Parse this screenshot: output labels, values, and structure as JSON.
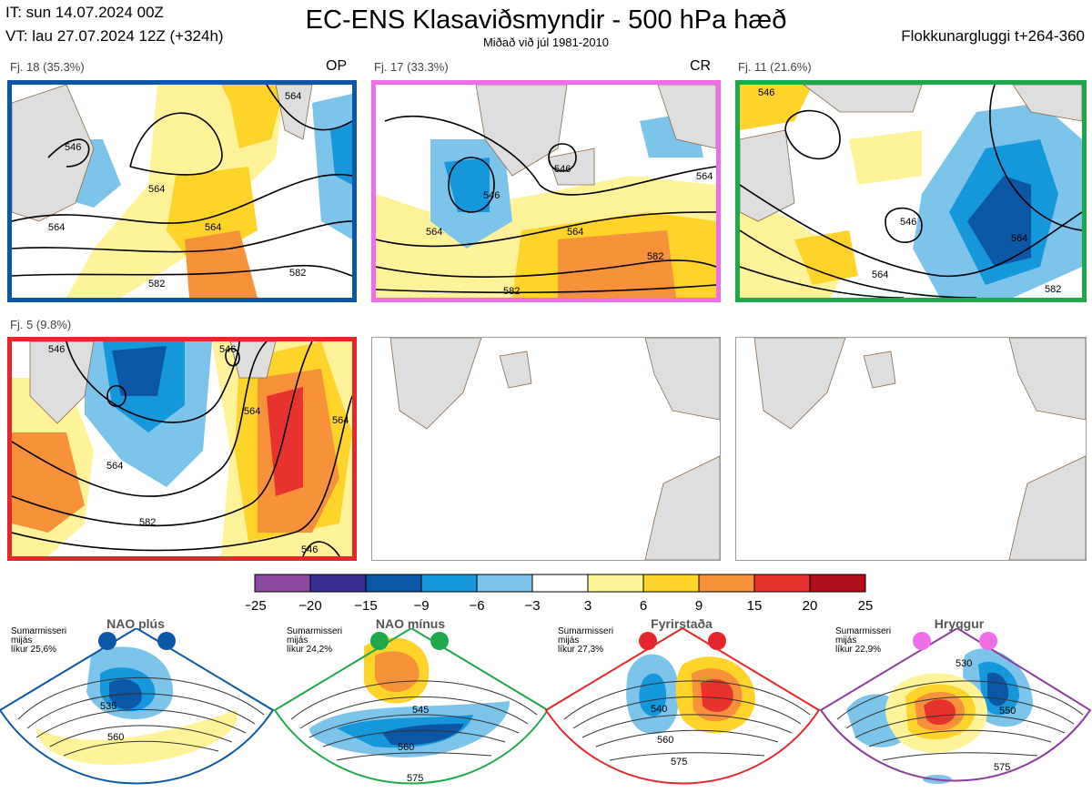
{
  "header": {
    "it": "IT: sun 14.07.2024 00Z",
    "vt": "VT: lau 27.07.2024 12Z  (+324h)",
    "title": "EC-ENS Klasaviðsmyndir - 500 hPa hæð",
    "subtitle": "Miðað við júl 1981-2010",
    "window": "Flokkunargluggi t+264-360"
  },
  "chart_data": {
    "type": "heatmap",
    "title": "EC-ENS Klasaviðsmyndir - 500 hPa hæð",
    "subtitle": "Miðað við júl 1981-2010",
    "clusters": [
      {
        "label": "Fj. 18 (35.3%)",
        "tag": "OP",
        "members": 18,
        "percent": 35.3,
        "border_color": "#0b56a5",
        "contours": [
          "546",
          "564",
          "564",
          "564",
          "564",
          "582",
          "582"
        ]
      },
      {
        "label": "Fj. 17 (33.3%)",
        "tag": "CR",
        "members": 17,
        "percent": 33.3,
        "border_color": "#ee6ee8",
        "contours": [
          "546",
          "546",
          "564",
          "564",
          "564",
          "582",
          "582"
        ]
      },
      {
        "label": "Fj. 11 (21.6%)",
        "tag": "",
        "members": 11,
        "percent": 21.6,
        "border_color": "#1fa84a",
        "contours": [
          "546",
          "546",
          "564",
          "564",
          "582"
        ]
      },
      {
        "label": "Fj. 5 (9.8%)",
        "tag": "",
        "members": 5,
        "percent": 9.8,
        "border_color": "#e5262a",
        "contours": [
          "546",
          "546",
          "564",
          "564",
          "564",
          "582",
          "546"
        ]
      }
    ],
    "empty_panels": 2,
    "colorbar": {
      "ticks": [
        "−25",
        "−20",
        "−15",
        "−9",
        "−6",
        "−3",
        "3",
        "6",
        "9",
        "15",
        "20",
        "25"
      ],
      "colors": [
        "#8a4a9e",
        "#3a2d91",
        "#0b56a5",
        "#1597dc",
        "#7cc4ea",
        "#ffffff",
        "#fff39a",
        "#fed32a",
        "#f7913a",
        "#e8322e",
        "#b0101a"
      ]
    },
    "regimes": [
      {
        "name": "NAO plús",
        "season": "Sumarmisseri",
        "period": "mijás",
        "likelihood": "líkur 25,6%",
        "color": "#0b56a5",
        "contours": [
          "535",
          "560"
        ]
      },
      {
        "name": "NAO mínus",
        "season": "Sumarmisseri",
        "period": "mijás",
        "likelihood": "líkur 24,2%",
        "color": "#1fa84a",
        "contours": [
          "545",
          "560",
          "575"
        ]
      },
      {
        "name": "Fyrirstaða",
        "season": "Sumarmisseri",
        "period": "mijás",
        "likelihood": "líkur 27,3%",
        "color": "#e5262a",
        "contours": [
          "540",
          "560",
          "575"
        ]
      },
      {
        "name": "Hryggur",
        "season": "Sumarmisseri",
        "period": "mijás",
        "likelihood": "líkur 22,9%",
        "color": "#ee6ee8",
        "contours": [
          "530",
          "550",
          "575"
        ]
      }
    ]
  }
}
